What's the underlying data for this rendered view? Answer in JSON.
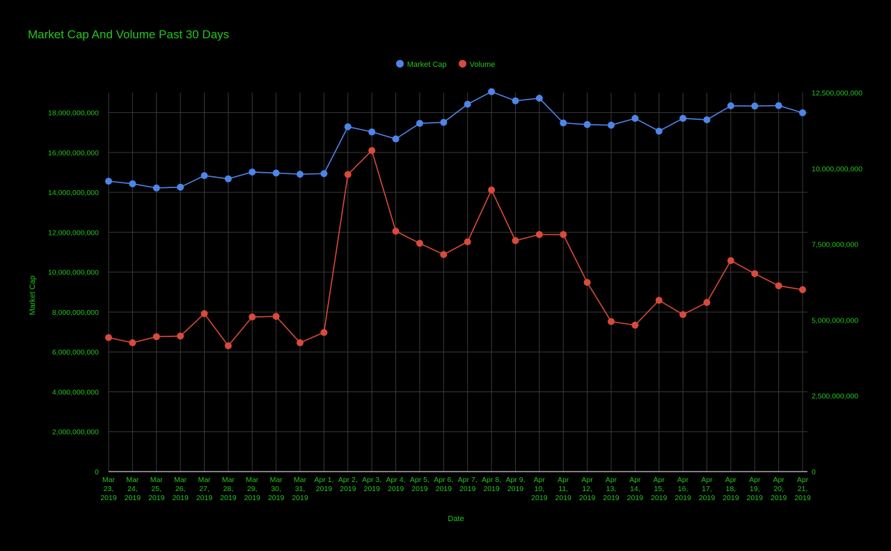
{
  "chart_data": {
    "type": "line",
    "title": "Market Cap And Volume Past 30 Days",
    "xlabel": "Date",
    "ylabel": "Market Cap",
    "y2label": "",
    "categories": [
      [
        "Mar",
        "23,",
        "2019"
      ],
      [
        "Mar",
        "24,",
        "2019"
      ],
      [
        "Mar",
        "25,",
        "2019"
      ],
      [
        "Mar",
        "26,",
        "2019"
      ],
      [
        "Mar",
        "27,",
        "2019"
      ],
      [
        "Mar",
        "28,",
        "2019"
      ],
      [
        "Mar",
        "29,",
        "2019"
      ],
      [
        "Mar",
        "30,",
        "2019"
      ],
      [
        "Mar",
        "31,",
        "2019"
      ],
      [
        "Apr 1,",
        "2019"
      ],
      [
        "Apr 2,",
        "2019"
      ],
      [
        "Apr 3,",
        "2019"
      ],
      [
        "Apr 4,",
        "2019"
      ],
      [
        "Apr 5,",
        "2019"
      ],
      [
        "Apr 6,",
        "2019"
      ],
      [
        "Apr 7,",
        "2019"
      ],
      [
        "Apr 8,",
        "2019"
      ],
      [
        "Apr 9,",
        "2019"
      ],
      [
        "Apr",
        "10,",
        "2019"
      ],
      [
        "Apr",
        "11,",
        "2019"
      ],
      [
        "Apr",
        "12,",
        "2019"
      ],
      [
        "Apr",
        "13,",
        "2019"
      ],
      [
        "Apr",
        "14,",
        "2019"
      ],
      [
        "Apr",
        "15,",
        "2019"
      ],
      [
        "Apr",
        "16,",
        "2019"
      ],
      [
        "Apr",
        "17,",
        "2019"
      ],
      [
        "Apr",
        "18,",
        "2019"
      ],
      [
        "Apr",
        "19,",
        "2019"
      ],
      [
        "Apr",
        "20,",
        "2019"
      ],
      [
        "Apr",
        "21,",
        "2019"
      ]
    ],
    "series": [
      {
        "name": "Market Cap",
        "axis": "left",
        "color": "#4d86e8",
        "values": [
          14560000000,
          14430000000,
          14220000000,
          14260000000,
          14840000000,
          14680000000,
          15020000000,
          14970000000,
          14910000000,
          14940000000,
          17290000000,
          17030000000,
          16680000000,
          17460000000,
          17510000000,
          18420000000,
          19050000000,
          18590000000,
          18720000000,
          17480000000,
          17400000000,
          17370000000,
          17710000000,
          17070000000,
          17710000000,
          17640000000,
          18340000000,
          18330000000,
          18350000000,
          17990000000
        ]
      },
      {
        "name": "Volume",
        "axis": "right",
        "color": "#d84a3b",
        "values": [
          4420000000,
          4250000000,
          4450000000,
          4470000000,
          5210000000,
          4150000000,
          5100000000,
          5120000000,
          4250000000,
          4590000000,
          9800000000,
          10590000000,
          7930000000,
          7530000000,
          7160000000,
          7580000000,
          9290000000,
          7620000000,
          7820000000,
          7820000000,
          6240000000,
          4950000000,
          4830000000,
          5650000000,
          5180000000,
          5580000000,
          6960000000,
          6530000000,
          6130000000,
          6000000000
        ]
      }
    ],
    "ylim": [
      0,
      19000000000
    ],
    "yticks": [
      "0",
      "2,000,000,000",
      "4,000,000,000",
      "6,000,000,000",
      "8,000,000,000",
      "10,000,000,000",
      "12,000,000,000",
      "14,000,000,000",
      "16,000,000,000",
      "18,000,000,000"
    ],
    "y2lim": [
      0,
      12500000000
    ],
    "y2ticks": [
      "0",
      "2,500,000,000",
      "5,000,000,000",
      "7,500,000,000",
      "10,000,000,000",
      "12,500,000,000"
    ],
    "legend_position": "top",
    "grid": true,
    "colors": {
      "background": "#000000",
      "text": "#22c61d",
      "grid": "#3a3a3a",
      "baseline": "#cccccc"
    }
  }
}
